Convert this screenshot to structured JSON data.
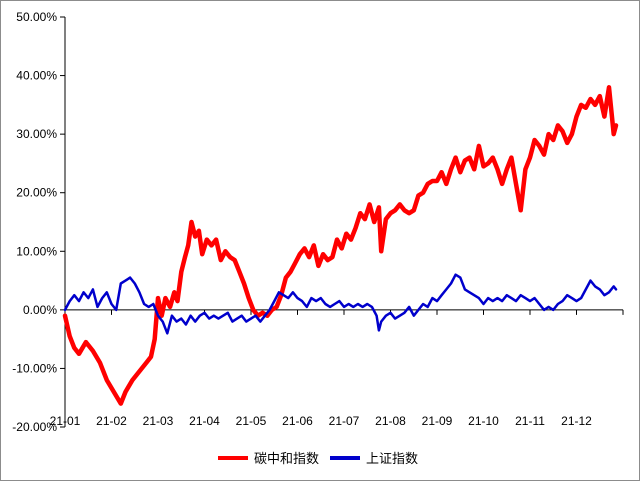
{
  "chart_data": {
    "type": "line",
    "title": "",
    "xlabel": "",
    "ylabel": "",
    "ylim": [
      -20,
      50
    ],
    "y_ticks": [
      50,
      40,
      30,
      20,
      10,
      0,
      -10,
      -20
    ],
    "y_tick_labels": [
      "50.00%",
      "40.00%",
      "30.00%",
      "20.00%",
      "10.00%",
      "0.00%",
      "-10.00%",
      "-20.00%"
    ],
    "x_tick_labels": [
      "21-01",
      "21-02",
      "21-03",
      "21-04",
      "21-05",
      "21-06",
      "21-07",
      "21-08",
      "21-09",
      "21-10",
      "21-11",
      "21-12"
    ],
    "x_range_months": [
      0,
      11.85
    ],
    "grid": false,
    "legend_position": "bottom",
    "series": [
      {
        "name": "碳中和指数",
        "color": "#ff0000",
        "x": [
          0.0,
          0.1,
          0.2,
          0.3,
          0.45,
          0.6,
          0.75,
          0.9,
          1.05,
          1.2,
          1.3,
          1.45,
          1.6,
          1.75,
          1.85,
          1.93,
          2.0,
          2.08,
          2.16,
          2.26,
          2.35,
          2.42,
          2.5,
          2.58,
          2.65,
          2.72,
          2.8,
          2.88,
          2.95,
          3.05,
          3.15,
          3.25,
          3.35,
          3.45,
          3.55,
          3.65,
          3.75,
          3.85,
          3.95,
          4.05,
          4.15,
          4.25,
          4.35,
          4.45,
          4.55,
          4.65,
          4.75,
          4.85,
          4.95,
          5.05,
          5.15,
          5.25,
          5.35,
          5.45,
          5.55,
          5.65,
          5.75,
          5.85,
          5.95,
          6.05,
          6.15,
          6.25,
          6.35,
          6.45,
          6.55,
          6.65,
          6.75,
          6.8,
          6.9,
          7.0,
          7.1,
          7.2,
          7.3,
          7.4,
          7.5,
          7.6,
          7.7,
          7.8,
          7.9,
          8.0,
          8.1,
          8.2,
          8.3,
          8.4,
          8.5,
          8.6,
          8.7,
          8.8,
          8.9,
          9.0,
          9.1,
          9.2,
          9.3,
          9.4,
          9.5,
          9.6,
          9.7,
          9.8,
          9.9,
          10.0,
          10.1,
          10.2,
          10.3,
          10.4,
          10.5,
          10.6,
          10.7,
          10.8,
          10.9,
          11.0,
          11.1,
          11.2,
          11.3,
          11.4,
          11.5,
          11.6,
          11.7,
          11.8,
          11.85
        ],
        "values": [
          -1.0,
          -4.5,
          -6.5,
          -7.5,
          -5.5,
          -7.0,
          -9.0,
          -12.0,
          -14.0,
          -16.0,
          -14.0,
          -12.0,
          -10.5,
          -9.0,
          -8.0,
          -5.0,
          2.0,
          -1.0,
          2.0,
          0.5,
          3.0,
          1.5,
          6.5,
          9.0,
          11.0,
          15.0,
          12.5,
          13.5,
          9.5,
          12.0,
          11.0,
          12.0,
          8.5,
          10.0,
          9.0,
          8.5,
          6.5,
          4.5,
          2.0,
          0.0,
          -1.0,
          -0.5,
          -1.0,
          0.0,
          0.5,
          2.5,
          5.5,
          6.5,
          8.0,
          9.5,
          10.5,
          9.0,
          11.0,
          7.5,
          9.5,
          8.5,
          9.0,
          12.0,
          10.5,
          13.0,
          12.0,
          14.0,
          16.5,
          15.5,
          18.0,
          15.0,
          17.5,
          10.0,
          15.5,
          16.5,
          17.0,
          18.0,
          17.0,
          16.5,
          17.0,
          19.5,
          20.0,
          21.5,
          22.0,
          22.0,
          23.5,
          21.5,
          24.0,
          26.0,
          23.5,
          25.5,
          26.0,
          24.0,
          28.0,
          24.5,
          25.0,
          26.0,
          24.0,
          21.5,
          24.0,
          26.0,
          21.5,
          17.0,
          24.0,
          26.0,
          29.0,
          28.0,
          26.5,
          30.0,
          29.0,
          31.5,
          30.5,
          28.5,
          30.0,
          33.0,
          35.0,
          34.5,
          36.0,
          35.0,
          36.5,
          33.0,
          38.0,
          30.0,
          31.5
        ],
        "width": 4.5
      },
      {
        "name": "上证指数",
        "color": "#0000cc",
        "x": [
          0.0,
          0.1,
          0.2,
          0.3,
          0.4,
          0.5,
          0.6,
          0.7,
          0.8,
          0.9,
          1.0,
          1.1,
          1.2,
          1.3,
          1.4,
          1.5,
          1.6,
          1.7,
          1.8,
          1.9,
          2.0,
          2.1,
          2.2,
          2.3,
          2.4,
          2.5,
          2.6,
          2.7,
          2.8,
          2.9,
          3.0,
          3.1,
          3.2,
          3.3,
          3.4,
          3.5,
          3.6,
          3.7,
          3.8,
          3.9,
          4.0,
          4.1,
          4.2,
          4.3,
          4.4,
          4.5,
          4.6,
          4.7,
          4.8,
          4.9,
          5.0,
          5.1,
          5.2,
          5.3,
          5.4,
          5.5,
          5.6,
          5.7,
          5.8,
          5.9,
          6.0,
          6.1,
          6.2,
          6.3,
          6.4,
          6.5,
          6.6,
          6.7,
          6.75,
          6.8,
          6.9,
          7.0,
          7.1,
          7.2,
          7.3,
          7.4,
          7.5,
          7.6,
          7.7,
          7.8,
          7.9,
          8.0,
          8.1,
          8.2,
          8.3,
          8.4,
          8.5,
          8.6,
          8.7,
          8.8,
          8.9,
          9.0,
          9.1,
          9.2,
          9.3,
          9.4,
          9.5,
          9.6,
          9.7,
          9.8,
          9.9,
          10.0,
          10.1,
          10.2,
          10.3,
          10.4,
          10.5,
          10.6,
          10.7,
          10.8,
          10.9,
          11.0,
          11.1,
          11.2,
          11.3,
          11.4,
          11.5,
          11.6,
          11.7,
          11.8,
          11.85
        ],
        "values": [
          0.0,
          1.5,
          2.5,
          1.5,
          3.0,
          2.0,
          3.5,
          0.5,
          2.0,
          3.0,
          1.0,
          0.0,
          4.5,
          5.0,
          5.5,
          4.5,
          3.0,
          1.0,
          0.5,
          1.0,
          -1.0,
          -2.0,
          -4.0,
          -1.0,
          -2.0,
          -1.5,
          -2.5,
          -1.0,
          -2.0,
          -1.0,
          -0.5,
          -1.5,
          -1.0,
          -1.5,
          -1.0,
          -0.5,
          -2.0,
          -1.5,
          -1.0,
          -2.0,
          -1.5,
          -1.0,
          -2.0,
          -1.0,
          0.0,
          1.5,
          3.0,
          2.5,
          2.0,
          3.0,
          2.0,
          1.5,
          0.5,
          2.0,
          1.5,
          2.0,
          1.0,
          0.5,
          1.0,
          1.5,
          0.5,
          1.0,
          0.5,
          1.0,
          0.5,
          1.0,
          0.5,
          -1.0,
          -3.5,
          -2.0,
          -1.0,
          -0.5,
          -1.5,
          -1.0,
          -0.5,
          0.5,
          -1.0,
          0.0,
          1.0,
          0.5,
          2.0,
          1.5,
          2.5,
          3.5,
          4.5,
          6.0,
          5.5,
          3.5,
          3.0,
          2.5,
          2.0,
          1.0,
          2.0,
          1.5,
          2.0,
          1.5,
          2.5,
          2.0,
          1.5,
          2.5,
          2.0,
          1.5,
          2.0,
          1.0,
          0.0,
          0.5,
          0.0,
          1.0,
          1.5,
          2.5,
          2.0,
          1.5,
          2.0,
          3.5,
          5.0,
          4.0,
          3.5,
          2.5,
          3.0,
          4.0,
          3.5
        ],
        "width": 2.5
      }
    ]
  }
}
